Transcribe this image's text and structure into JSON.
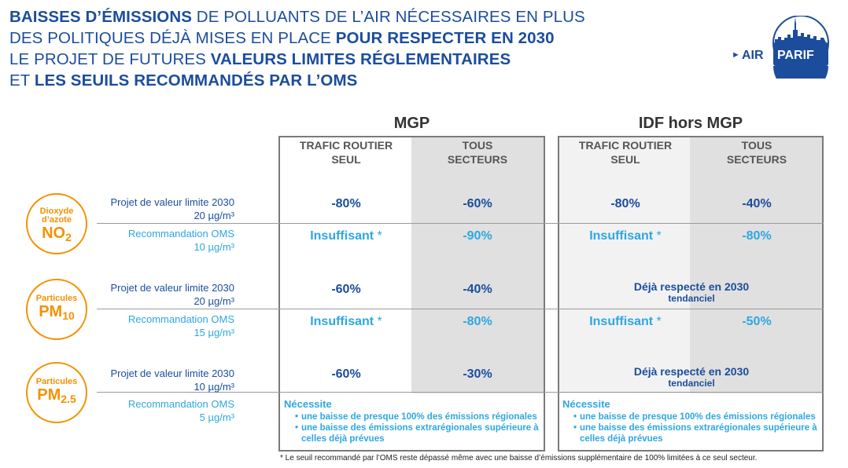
{
  "title": {
    "line1_bold": "BAISSES D’ÉMISSIONS",
    "line1_rest": " DE POLLUANTS DE L’AIR NÉCESSAIRES EN PLUS",
    "line2_rest": "DES POLITIQUES DÉJÀ MISES EN PLACE ",
    "line2_bold": "POUR RESPECTER EN 2030",
    "line3_rest": "LE PROJET DE FUTURES ",
    "line3_bold": "VALEURS LIMITES RÉGLEMENTAIRES",
    "line4_rest": "ET ",
    "line4_bold": "LES SEUILS RECOMMANDÉS PAR L’OMS"
  },
  "logo": {
    "text_air": "AIR",
    "text_parif": "PARIF",
    "arrow_glyph": "►"
  },
  "colors": {
    "navy": "#1b4d9c",
    "light_blue": "#2ea7e0",
    "orange": "#f39200",
    "grey_bg": "#e0e0e0"
  },
  "regions": [
    {
      "title": "MGP",
      "col1": [
        "TRAFIC ROUTIER",
        "SEUL"
      ],
      "col2": [
        "TOUS",
        "SECTEURS"
      ]
    },
    {
      "title": "IDF hors MGP",
      "col1": [
        "TRAFIC ROUTIER",
        "SEUL"
      ],
      "col2": [
        "TOUS",
        "SECTEURS"
      ]
    }
  ],
  "pollutants": [
    {
      "name_small1": "Dioxyde",
      "name_small2": "d’azote",
      "formula": "NO",
      "sub": "2",
      "limit_label": "Projet de valeur limite 2030",
      "limit_value": "20 µg/m³",
      "oms_label": "Recommandation OMS",
      "oms_value": "10 µg/m³",
      "mgp": {
        "limit_road": "-80%",
        "limit_all": "-60%",
        "oms_road": "Insuffisant",
        "oms_all": "-90%"
      },
      "idf": {
        "limit_road": "-80%",
        "limit_all": "-40%",
        "oms_road": "Insuffisant",
        "oms_all": "-80%"
      }
    },
    {
      "name_small1": "Particules",
      "name_small2": "",
      "formula": "PM",
      "sub": "10",
      "limit_label": "Projet de valeur limite 2030",
      "limit_value": "20 µg/m³",
      "oms_label": "Recommandation OMS",
      "oms_value": "15 µg/m³",
      "mgp": {
        "limit_road": "-60%",
        "limit_all": "-40%",
        "oms_road": "Insuffisant",
        "oms_all": "-80%"
      },
      "idf": {
        "deja": "Déjà respecté en 2030",
        "deja_sub": "tendanciel",
        "oms_road": "Insuffisant",
        "oms_all": "-50%"
      }
    },
    {
      "name_small1": "Particules",
      "name_small2": "",
      "formula": "PM",
      "sub": "2.5",
      "limit_label": "Projet de valeur limite 2030",
      "limit_value": "10 µg/m³",
      "oms_label": "Recommandation OMS",
      "oms_value": "5 µg/m³",
      "mgp": {
        "limit_road": "-60%",
        "limit_all": "-30%"
      },
      "idf": {
        "deja": "Déjà respecté en 2030",
        "deja_sub": "tendanciel"
      }
    }
  ],
  "asterisk": "*",
  "necessite": {
    "head": "Nécessite",
    "item1": "une baisse de presque 100% des émissions régionales",
    "item2a": "une baisse des émissions extrarégionales supérieure à",
    "item2b": "celles déjà prévues"
  },
  "footnote": "* Le seuil recommandé par l’OMS reste dépassé même avec une baisse d’émissions supplémentaire de 100% limitées à ce seul secteur."
}
